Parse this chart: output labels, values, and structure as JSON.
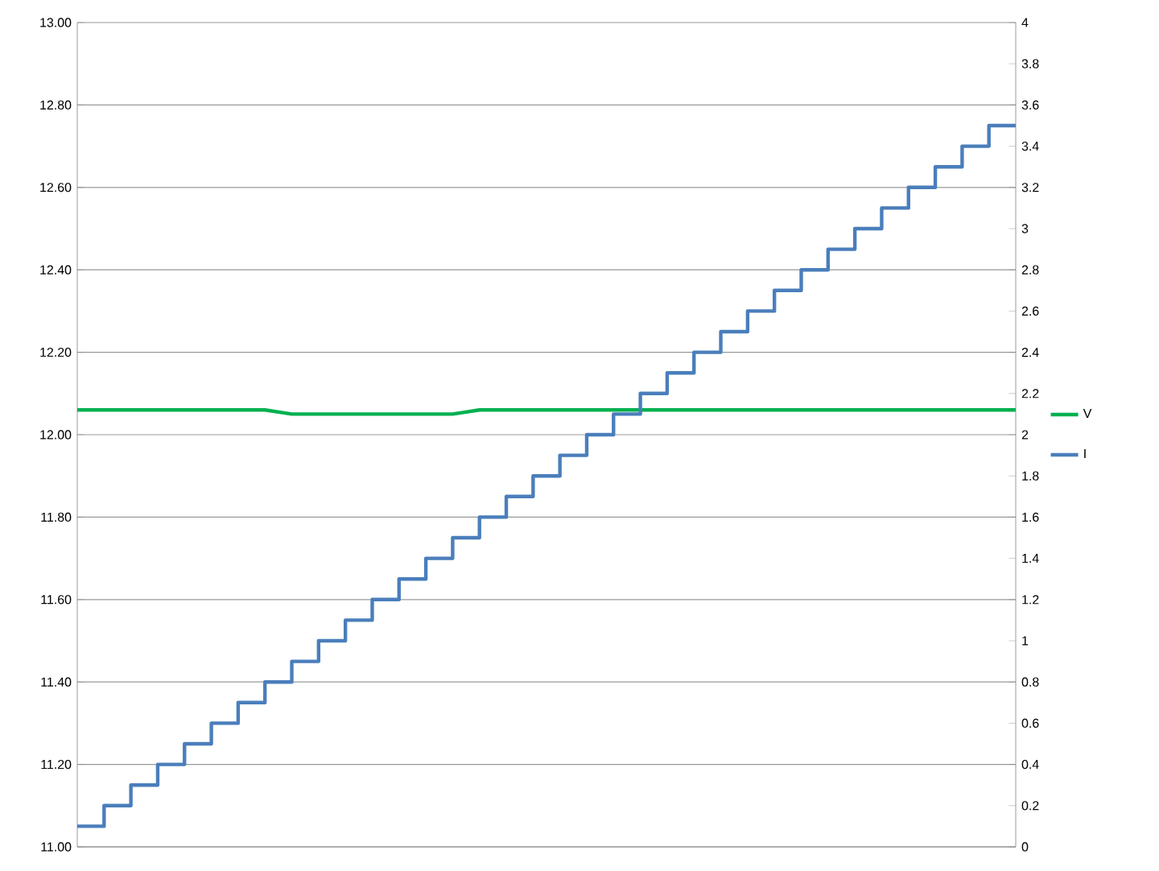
{
  "chart_data": {
    "type": "line",
    "categories": [
      null,
      null,
      null,
      null,
      null,
      null,
      null,
      null,
      null,
      null,
      null,
      null,
      null,
      null,
      null,
      null,
      null,
      null,
      null,
      null,
      null,
      null,
      null,
      null,
      null,
      null,
      null,
      null,
      null,
      null,
      null,
      null,
      null,
      null,
      null,
      null
    ],
    "series": [
      {
        "name": "V",
        "color": "#00b050",
        "values": [
          12.06,
          12.06,
          12.06,
          12.06,
          12.06,
          12.06,
          12.06,
          12.06,
          12.05,
          12.05,
          12.05,
          12.05,
          12.05,
          12.05,
          12.05,
          12.06,
          12.06,
          12.06,
          12.06,
          12.06,
          12.06,
          12.06,
          12.06,
          12.06,
          12.06,
          12.06,
          12.06,
          12.06,
          12.06,
          12.06,
          12.06,
          12.06,
          12.06,
          12.06,
          12.06,
          12.06
        ]
      },
      {
        "name": "I",
        "color": "#4a7ebb",
        "type": "step",
        "axis": "y2",
        "values": [
          0.1,
          0.2,
          0.3,
          0.4,
          0.5,
          0.6,
          0.7,
          0.8,
          0.9,
          1.0,
          1.1,
          1.2,
          1.3,
          1.4,
          1.5,
          1.6,
          1.7,
          1.8,
          1.9,
          2.0,
          2.1,
          2.2,
          2.3,
          2.4,
          2.5,
          2.6,
          2.7,
          2.8,
          2.9,
          3.0,
          3.1,
          3.2,
          3.3,
          3.4,
          3.5,
          3.5
        ]
      }
    ],
    "ylim": [
      11,
      13
    ],
    "yticks": [
      {
        "value": 11,
        "label": "11.00"
      },
      {
        "value": 11.2,
        "label": "11.20"
      },
      {
        "value": 11.4,
        "label": "11.40"
      },
      {
        "value": 11.6,
        "label": "11.60"
      },
      {
        "value": 11.8,
        "label": "11.80"
      },
      {
        "value": 12,
        "label": "12.00"
      },
      {
        "value": 12.2,
        "label": "12.20"
      },
      {
        "value": 12.4,
        "label": "12.40"
      },
      {
        "value": 12.6,
        "label": "12.60"
      },
      {
        "value": 12.8,
        "label": "12.80"
      },
      {
        "value": 13,
        "label": "13.00"
      }
    ],
    "y2lim": [
      0,
      4
    ],
    "y2ticks": [
      0,
      0.2,
      0.4,
      0.6,
      0.8,
      1,
      1.2,
      1.4,
      1.6,
      1.8,
      2,
      2.2,
      2.4,
      2.6,
      2.8,
      3,
      3.2,
      3.4,
      3.6,
      3.8,
      4
    ],
    "grid": "y",
    "legend": "right",
    "tick_labels": "y"
  }
}
